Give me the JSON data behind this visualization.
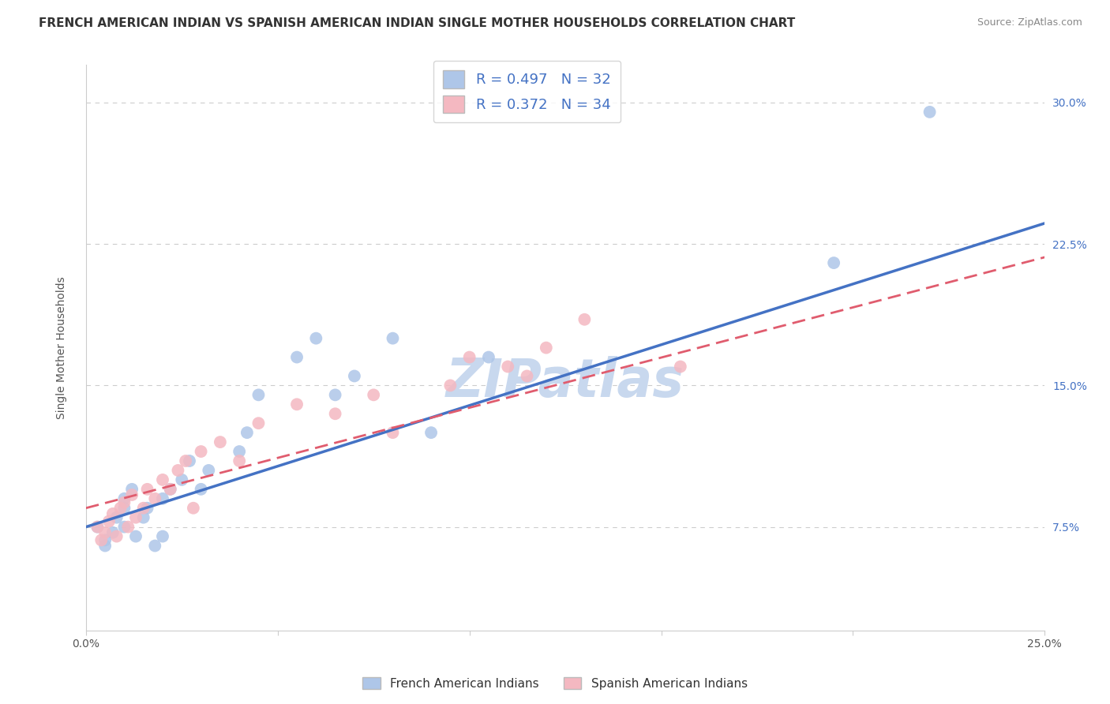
{
  "title": "FRENCH AMERICAN INDIAN VS SPANISH AMERICAN INDIAN SINGLE MOTHER HOUSEHOLDS CORRELATION CHART",
  "source": "Source: ZipAtlas.com",
  "ylabel": "Single Mother Households",
  "xlim": [
    0.0,
    0.25
  ],
  "ylim": [
    0.02,
    0.32
  ],
  "xticks": [
    0.0,
    0.05,
    0.1,
    0.15,
    0.2,
    0.25
  ],
  "xticklabels": [
    "0.0%",
    "",
    "",
    "",
    "",
    "25.0%"
  ],
  "yticks": [
    0.075,
    0.15,
    0.225,
    0.3
  ],
  "yticklabels": [
    "7.5%",
    "15.0%",
    "22.5%",
    "30.0%"
  ],
  "watermark": "ZIPatlas",
  "legend_entries": [
    {
      "label": "R = 0.497   N = 32",
      "color": "#aec6e8"
    },
    {
      "label": "R = 0.372   N = 34",
      "color": "#f4b8c1"
    }
  ],
  "french_color": "#aec6e8",
  "french_line_color": "#4472c4",
  "spanish_color": "#f4b8c1",
  "spanish_line_color": "#e05c6e",
  "french_R": 0.497,
  "french_N": 32,
  "spanish_R": 0.372,
  "spanish_N": 34,
  "french_line_x0": 0.0,
  "french_line_y0": 0.075,
  "french_line_x1": 0.25,
  "french_line_y1": 0.236,
  "spanish_line_x0": 0.0,
  "spanish_line_y0": 0.085,
  "spanish_line_x1": 0.25,
  "spanish_line_y1": 0.218,
  "french_scatter_x": [
    0.003,
    0.005,
    0.005,
    0.007,
    0.008,
    0.01,
    0.01,
    0.01,
    0.012,
    0.013,
    0.015,
    0.016,
    0.018,
    0.02,
    0.02,
    0.022,
    0.025,
    0.027,
    0.03,
    0.032,
    0.04,
    0.042,
    0.045,
    0.055,
    0.06,
    0.065,
    0.07,
    0.08,
    0.09,
    0.105,
    0.195,
    0.22
  ],
  "french_scatter_y": [
    0.075,
    0.065,
    0.068,
    0.072,
    0.08,
    0.085,
    0.09,
    0.075,
    0.095,
    0.07,
    0.08,
    0.085,
    0.065,
    0.09,
    0.07,
    0.095,
    0.1,
    0.11,
    0.095,
    0.105,
    0.115,
    0.125,
    0.145,
    0.165,
    0.175,
    0.145,
    0.155,
    0.175,
    0.125,
    0.165,
    0.215,
    0.295
  ],
  "spanish_scatter_x": [
    0.003,
    0.004,
    0.005,
    0.006,
    0.007,
    0.008,
    0.009,
    0.01,
    0.011,
    0.012,
    0.013,
    0.015,
    0.016,
    0.018,
    0.02,
    0.022,
    0.024,
    0.026,
    0.028,
    0.03,
    0.035,
    0.04,
    0.045,
    0.055,
    0.065,
    0.075,
    0.08,
    0.095,
    0.1,
    0.11,
    0.115,
    0.12,
    0.13,
    0.155
  ],
  "spanish_scatter_y": [
    0.075,
    0.068,
    0.072,
    0.078,
    0.082,
    0.07,
    0.085,
    0.088,
    0.075,
    0.092,
    0.08,
    0.085,
    0.095,
    0.09,
    0.1,
    0.095,
    0.105,
    0.11,
    0.085,
    0.115,
    0.12,
    0.11,
    0.13,
    0.14,
    0.135,
    0.145,
    0.125,
    0.15,
    0.165,
    0.16,
    0.155,
    0.17,
    0.185,
    0.16
  ],
  "title_fontsize": 11,
  "axis_fontsize": 10,
  "tick_fontsize": 10,
  "watermark_fontsize": 48,
  "watermark_color": "#c8d8ee",
  "background_color": "#ffffff",
  "grid_color": "#cccccc"
}
